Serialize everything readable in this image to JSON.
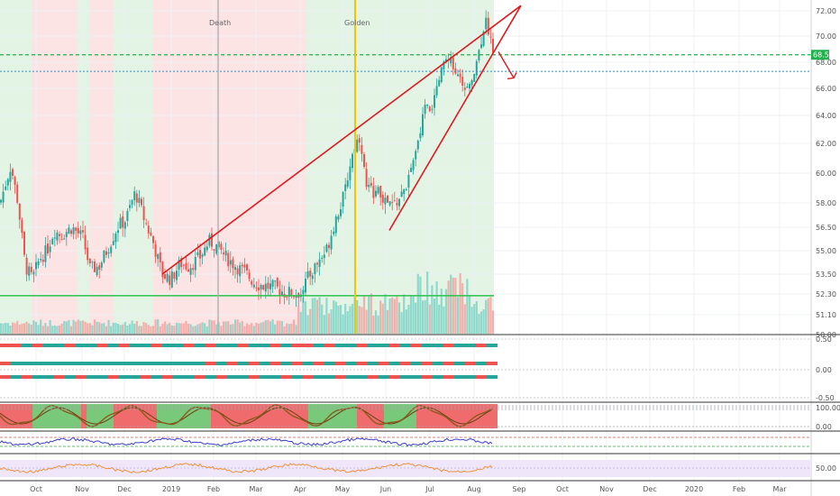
{
  "chart_data": {
    "type": "candlestick",
    "price_axis": {
      "ticks": [
        "72.00",
        "70.00",
        "68.00",
        "66.00",
        "64.00",
        "62.00",
        "60.00",
        "58.00",
        "56.50",
        "55.00",
        "53.50",
        "52.30",
        "51.10",
        "50.00"
      ],
      "tick_values": [
        72.0,
        70.0,
        68.0,
        66.0,
        64.0,
        62.0,
        60.0,
        58.0,
        56.5,
        55.0,
        53.5,
        52.3,
        51.1,
        50.0
      ],
      "current_price": "68.57",
      "current_value": 68.57,
      "ref_level_blue": 67.3,
      "support_level_green": 52.2
    },
    "time_axis": {
      "labels": [
        "Oct",
        "Nov",
        "Dec",
        "2019",
        "Feb",
        "Mar",
        "Apr",
        "May",
        "Jun",
        "Jul",
        "Aug",
        "Sep",
        "Oct",
        "Nov",
        "Dec",
        "2020",
        "Feb",
        "Mar"
      ]
    },
    "annotations": {
      "death": "Death",
      "golden": "Golden"
    },
    "price_path": [
      [
        0,
        58.0
      ],
      [
        12,
        60.5
      ],
      [
        20,
        58.0
      ],
      [
        28,
        54.0
      ],
      [
        36,
        53.2
      ],
      [
        44,
        54.5
      ],
      [
        52,
        55.0
      ],
      [
        60,
        56.3
      ],
      [
        68,
        56.0
      ],
      [
        80,
        56.5
      ],
      [
        92,
        55.8
      ],
      [
        100,
        53.8
      ],
      [
        110,
        54.0
      ],
      [
        120,
        55.2
      ],
      [
        130,
        56.5
      ],
      [
        140,
        57.0
      ],
      [
        150,
        58.7
      ],
      [
        160,
        57.0
      ],
      [
        170,
        55.5
      ],
      [
        180,
        53.5
      ],
      [
        190,
        53.2
      ],
      [
        200,
        54.2
      ],
      [
        210,
        54.0
      ],
      [
        222,
        54.6
      ],
      [
        232,
        55.6
      ],
      [
        242,
        55.2
      ],
      [
        252,
        54.5
      ],
      [
        262,
        54.0
      ],
      [
        272,
        53.6
      ],
      [
        282,
        53.0
      ],
      [
        292,
        52.8
      ],
      [
        304,
        52.7
      ],
      [
        316,
        52.4
      ],
      [
        330,
        52.3
      ],
      [
        342,
        53.3
      ],
      [
        352,
        54.2
      ],
      [
        362,
        55.0
      ],
      [
        372,
        57.0
      ],
      [
        382,
        58.5
      ],
      [
        388,
        60.5
      ],
      [
        394,
        62.0
      ],
      [
        400,
        62.5
      ],
      [
        406,
        59.0
      ],
      [
        412,
        58.8
      ],
      [
        420,
        58.7
      ],
      [
        428,
        58.0
      ],
      [
        436,
        57.8
      ],
      [
        446,
        58.5
      ],
      [
        456,
        60.0
      ],
      [
        464,
        62.0
      ],
      [
        470,
        64.5
      ],
      [
        478,
        64.5
      ],
      [
        486,
        66.0
      ],
      [
        492,
        68.0
      ],
      [
        498,
        68.5
      ],
      [
        504,
        67.5
      ],
      [
        512,
        66.2
      ],
      [
        520,
        66.0
      ],
      [
        526,
        67.5
      ],
      [
        532,
        69.0
      ],
      [
        538,
        71.3
      ],
      [
        542,
        70.5
      ],
      [
        547,
        69.0
      ]
    ],
    "wedge_lines": [
      {
        "from": [
          180,
          53.5
        ],
        "to": [
          578,
          72.4
        ]
      },
      {
        "from": [
          432,
          56.3
        ],
        "to": [
          578,
          72.4
        ]
      }
    ],
    "projection_arrow": {
      "from": [
        553,
        68.8
      ],
      "to": [
        570,
        66.8
      ]
    },
    "oscillator_1_axis": {
      "ticks": [
        "0.50",
        "0.00",
        "-0.50"
      ],
      "tick_values": [
        0.5,
        0.0,
        -0.5
      ]
    },
    "oscillator_2_axis": {
      "ticks": [
        "100.00",
        "0.00"
      ],
      "tick_values": [
        100,
        0
      ]
    },
    "oscillator_4_axis": {
      "ticks": [
        "50.00"
      ],
      "tick_values": [
        50
      ]
    },
    "colors": {
      "bull": "#26a69a",
      "bear": "#ef5350",
      "wedge": "#e0191e",
      "golden_line": "#f5c400",
      "death_line": "#b0b0b0",
      "price_line": "#1fb24a",
      "ref_line": "#2a8fd6"
    }
  }
}
